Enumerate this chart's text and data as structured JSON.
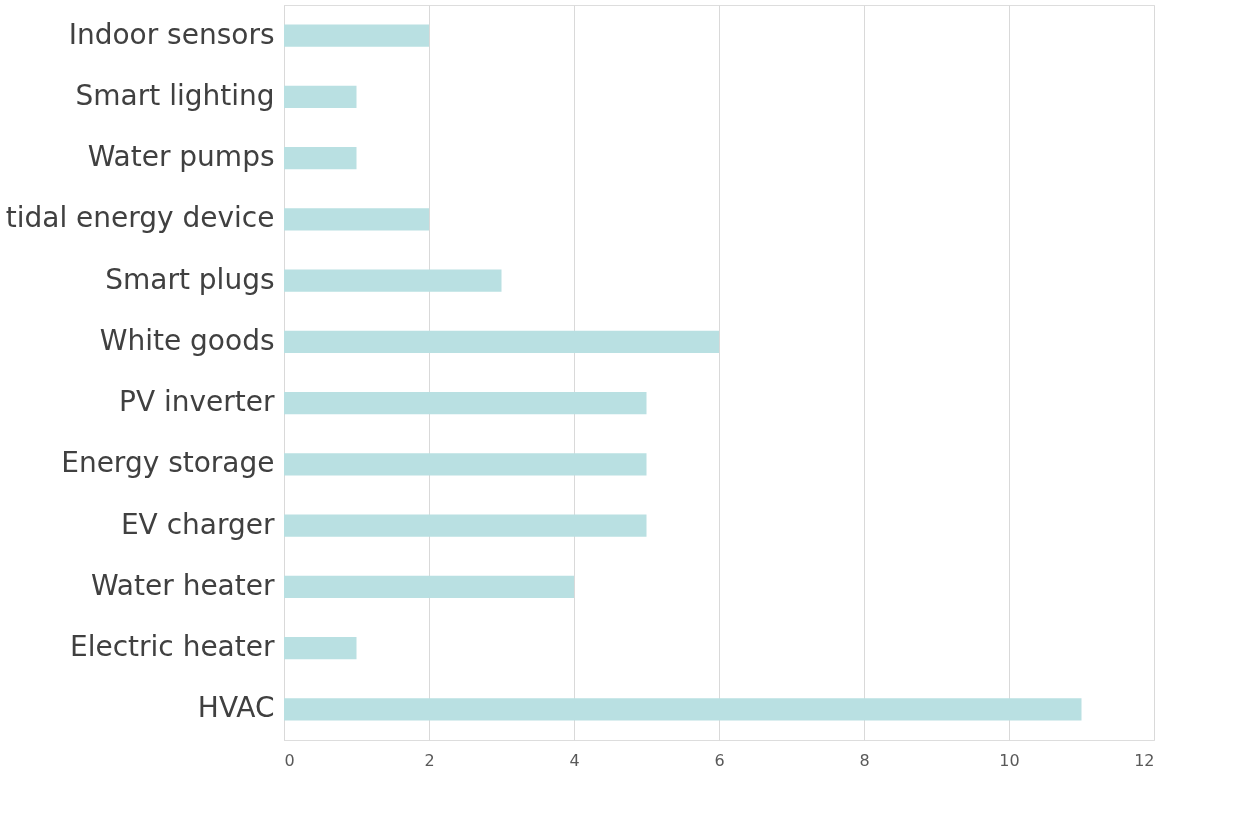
{
  "chart_data": {
    "type": "bar",
    "orientation": "horizontal",
    "categories": [
      "Indoor sensors",
      "Smart lighting",
      "Water pumps",
      "tidal energy device",
      "Smart plugs",
      "White goods",
      "PV inverter",
      "Energy storage",
      "EV charger",
      "Water heater",
      "Electric heater",
      "HVAC"
    ],
    "values": [
      2,
      1,
      1,
      2,
      3,
      6,
      5,
      5,
      5,
      4,
      1,
      11
    ],
    "color": "#b9e0e2",
    "xlim": [
      0,
      12
    ],
    "xticks": [
      0,
      2,
      4,
      6,
      8,
      10,
      12
    ],
    "grid": "x"
  }
}
